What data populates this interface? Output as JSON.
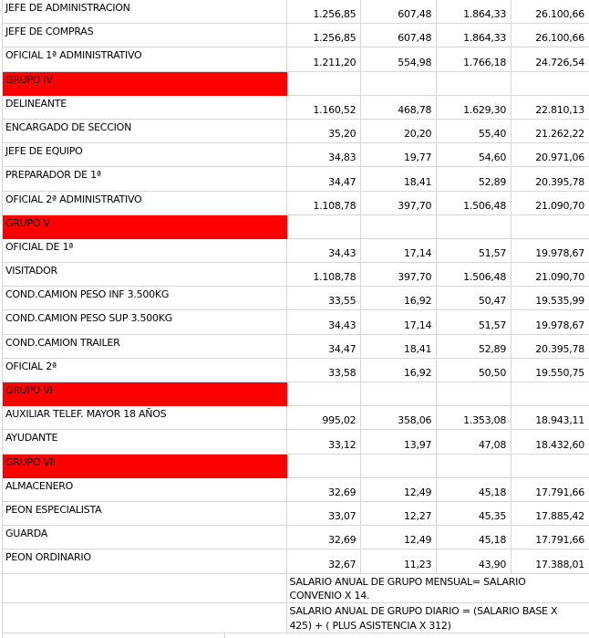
{
  "theme": {
    "group_bg": "#ff0000",
    "grid": "#d7d7d7",
    "text": "#000000",
    "bg": "#ffffff"
  },
  "table": {
    "rows": [
      {
        "type": "data",
        "label": "JEFE DE ADMINISTRACION",
        "values": [
          "1.256,85",
          "607,48",
          "1.864,33",
          "26.100,66"
        ]
      },
      {
        "type": "data",
        "label": "JEFE DE COMPRAS",
        "values": [
          "1.256,85",
          "607,48",
          "1.864,33",
          "26.100,66"
        ]
      },
      {
        "type": "data",
        "label": "OFICIAL 1ª ADMINISTRATIVO",
        "values": [
          "1.211,20",
          "554,98",
          "1.766,18",
          "24.726,54"
        ]
      },
      {
        "type": "group",
        "label": "GRUPO IV"
      },
      {
        "type": "data",
        "label": "DELINEANTE",
        "values": [
          "1.160,52",
          "468,78",
          "1.629,30",
          "22.810,13"
        ]
      },
      {
        "type": "data",
        "label": "ENCARGADO DE SECCION",
        "values": [
          "35,20",
          "20,20",
          "55,40",
          "21.262,22"
        ]
      },
      {
        "type": "data",
        "label": "JEFE DE EQUIPO",
        "values": [
          "34,83",
          "19,77",
          "54,60",
          "20.971,06"
        ]
      },
      {
        "type": "data",
        "label": "PREPARADOR DE 1ª",
        "values": [
          "34,47",
          "18,41",
          "52,89",
          "20.395,78"
        ]
      },
      {
        "type": "data",
        "label": "OFICIAL 2ª ADMINISTRATIVO",
        "values": [
          "1.108,78",
          "397,70",
          "1.506,48",
          "21.090,70"
        ]
      },
      {
        "type": "group",
        "label": "GRUPO V"
      },
      {
        "type": "data",
        "label": "OFICIAL DE 1ª",
        "values": [
          "34,43",
          "17,14",
          "51,57",
          "19.978,67"
        ]
      },
      {
        "type": "data",
        "label": "VISITADOR",
        "values": [
          "1.108,78",
          "397,70",
          "1.506,48",
          "21.090,70"
        ]
      },
      {
        "type": "data",
        "label": "COND.CAMION PESO INF 3.500KG",
        "values": [
          "33,55",
          "16,92",
          "50,47",
          "19.535,99"
        ]
      },
      {
        "type": "data",
        "label": "COND.CAMION PESO SUP 3.500KG",
        "values": [
          "34,43",
          "17,14",
          "51,57",
          "19.978,67"
        ]
      },
      {
        "type": "data",
        "label": "COND.CAMION TRAILER",
        "values": [
          "34,47",
          "18,41",
          "52,89",
          "20.395,78"
        ]
      },
      {
        "type": "data",
        "label": "OFICIAL 2ª",
        "values": [
          "33,58",
          "16,92",
          "50,50",
          "19.550,75"
        ]
      },
      {
        "type": "group",
        "label": "GRUPO VI"
      },
      {
        "type": "data",
        "label": "AUXILIAR TELEF. MAYOR 18 AÑOS",
        "values": [
          "995,02",
          "358,06",
          "1.353,08",
          "18.943,11"
        ]
      },
      {
        "type": "data",
        "label": "AYUDANTE",
        "values": [
          "33,12",
          "13,97",
          "47,08",
          "18.432,60"
        ]
      },
      {
        "type": "group",
        "label": "GRUPO VII"
      },
      {
        "type": "data",
        "label": "ALMACENERO",
        "values": [
          "32,69",
          "12,49",
          "45,18",
          "17.791,66"
        ]
      },
      {
        "type": "data",
        "label": "PEON ESPECIALISTA",
        "values": [
          "33,07",
          "12,27",
          "45,35",
          "17.885,42"
        ]
      },
      {
        "type": "data",
        "label": "GUARDA",
        "values": [
          "32,69",
          "12,49",
          "45,18",
          "17.791,66"
        ]
      },
      {
        "type": "data",
        "label": "PEON ORDINARIO",
        "values": [
          "32,67",
          "11,23",
          "43,90",
          "17.388,01"
        ]
      },
      {
        "type": "note",
        "lines": [
          "SALARIO ANUAL DE GRUPO MENSUAL= SALARIO",
          "CONVENIO X 14."
        ]
      },
      {
        "type": "note",
        "lines": [
          "SALARIO ANUAL DE GRUPO DIARIO = (SALARIO BASE X",
          "425) + ( PLUS ASISTENCIA X 312)"
        ]
      }
    ]
  }
}
